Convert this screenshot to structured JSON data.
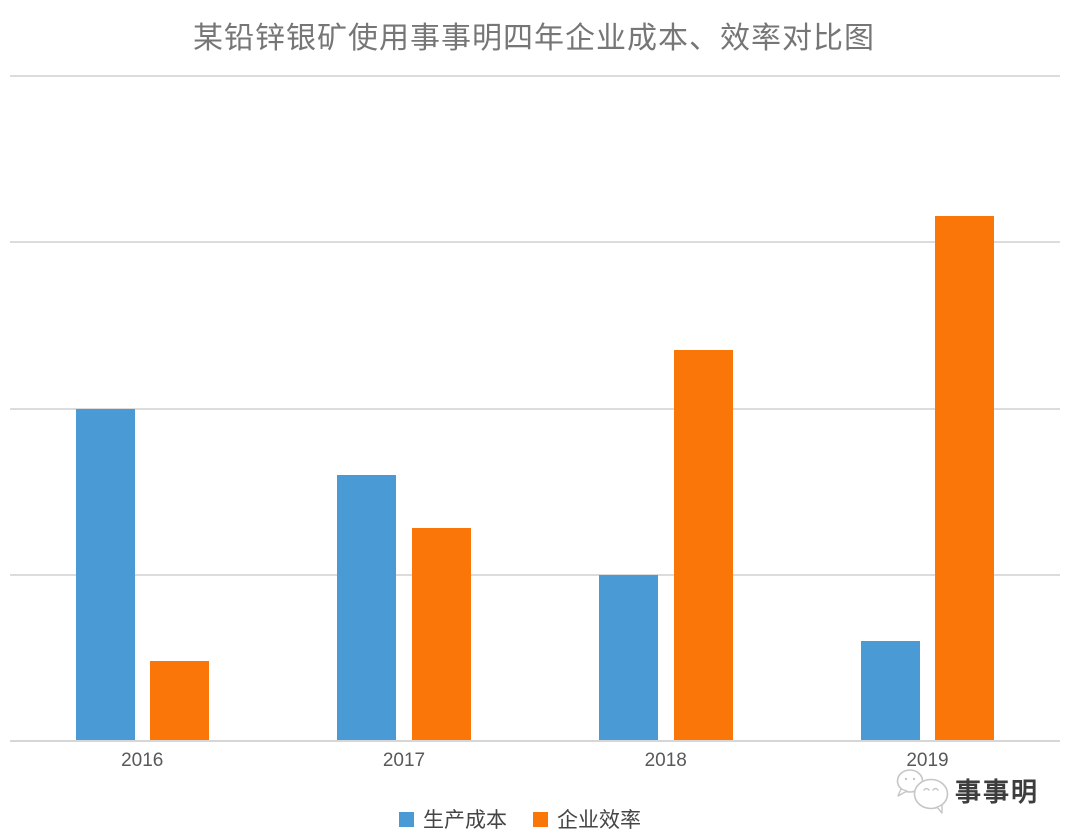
{
  "chart_data": {
    "type": "bar",
    "title": "某铅锌银矿使用事事明四年企业成本、效率对比图",
    "title_color": "#767676",
    "categories": [
      "2016",
      "2017",
      "2018",
      "2019"
    ],
    "series": [
      {
        "name": "生产成本",
        "color": "#4a9ad5",
        "values": [
          2.0,
          1.6,
          1.0,
          0.6
        ]
      },
      {
        "name": "企业效率",
        "color": "#fb7609",
        "values": [
          0.48,
          1.28,
          2.35,
          3.16
        ]
      }
    ],
    "xlabel": "",
    "ylabel": "",
    "ylim": [
      0,
      4
    ],
    "y_tick_labels_visible": false,
    "grid": true,
    "gridline_count": 4,
    "gridline_color": "#dcdcdc",
    "tick_label_color": "#595959",
    "legend_position": "bottom"
  },
  "watermark": {
    "text": "事事明",
    "icon": "chat-bubbles-icon",
    "text_color": "#3d3d3d"
  }
}
